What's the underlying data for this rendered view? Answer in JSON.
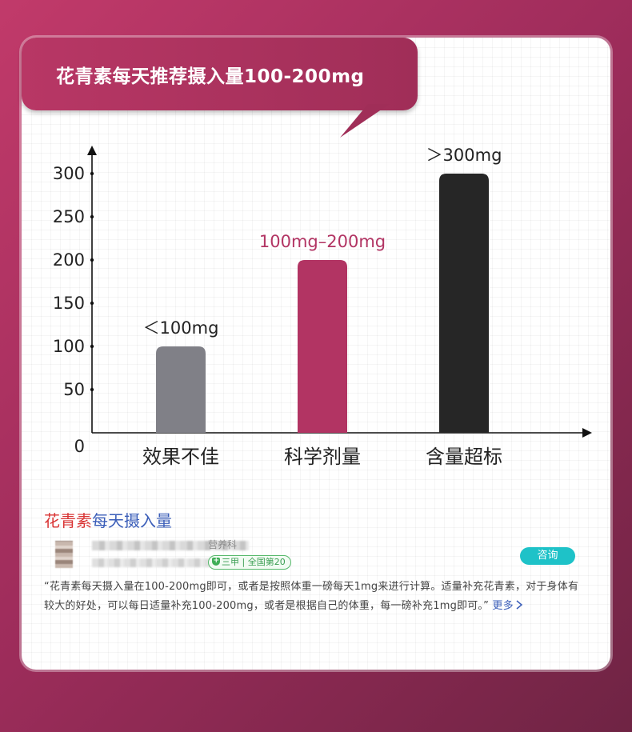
{
  "banner": {
    "title": "花青素每天推荐摄入量100-200mg"
  },
  "chart_data": {
    "type": "bar",
    "categories": [
      "效果不佳",
      "科学剂量",
      "含量超标"
    ],
    "values": [
      100,
      200,
      300
    ],
    "bar_labels": [
      "＜100mg",
      "100mg–200mg",
      "＞300mg"
    ],
    "y_ticks": [
      0,
      50,
      100,
      150,
      200,
      250,
      300
    ],
    "ylim": [
      0,
      340
    ],
    "title": "",
    "xlabel": "",
    "ylabel": "",
    "grid": false,
    "colors": [
      "#808087",
      "#b23463",
      "#262626"
    ],
    "label_colors": [
      "#222222",
      "#b23463",
      "#222222"
    ]
  },
  "source": {
    "title_highlight": "花青素",
    "title_rest": "每天摄入量",
    "department": "营养科",
    "badge": "三甲 | 全国第20",
    "consult_label": "咨询",
    "quote": "“花青素每天摄入量在100-200mg即可，或者是按照体重一磅每天1mg来进行计算。适量补充花青素，对于身体有较大的好处，可以每日适量补充100-200mg，或者是根据自己的体重，每一磅补充1mg即可。”",
    "more_label": "更多",
    "more_icon": "chevron-right-icon"
  }
}
